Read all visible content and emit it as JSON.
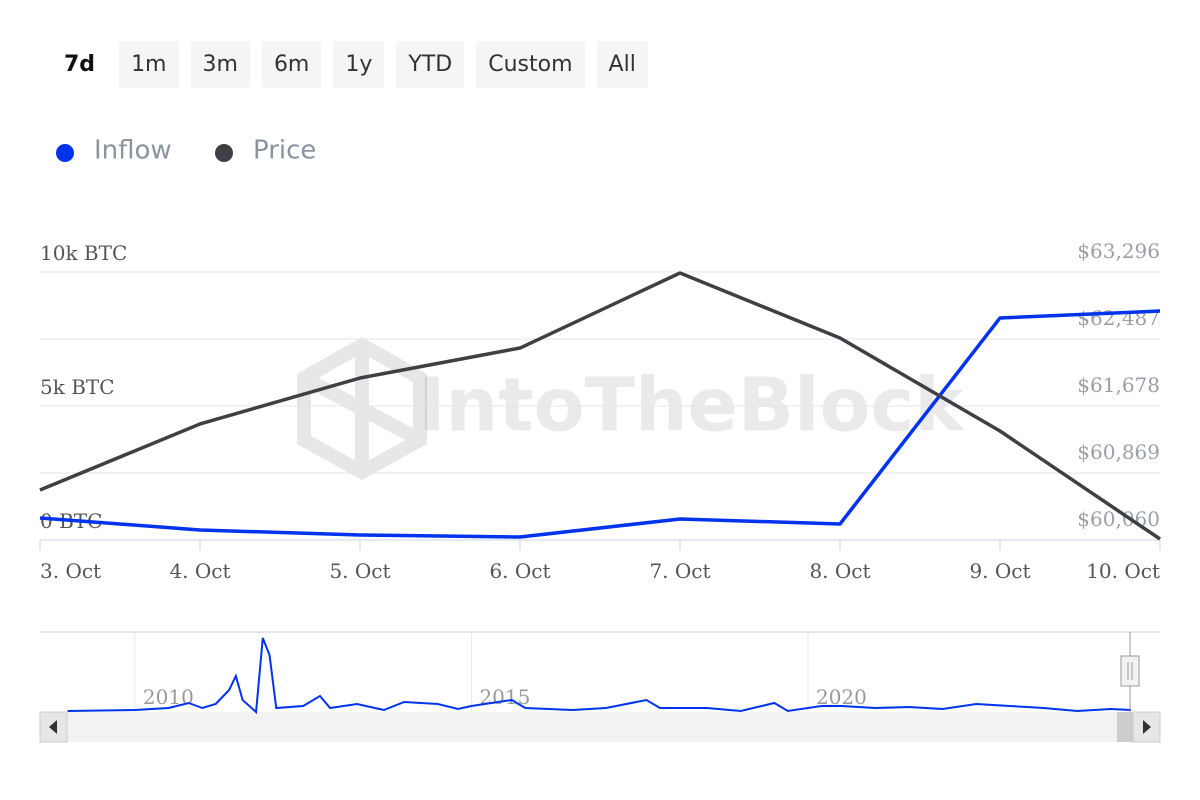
{
  "range_buttons": [
    "7d",
    "1m",
    "3m",
    "6m",
    "1y",
    "YTD",
    "Custom",
    "All"
  ],
  "selected_button": 0,
  "watermark": "IntoTheBlock",
  "chart_data": {
    "type": "line",
    "categories": [
      "3. Oct",
      "4. Oct",
      "5. Oct",
      "6. Oct",
      "7. Oct",
      "8. Oct",
      "9. Oct",
      "10. Oct"
    ],
    "series": [
      {
        "name": "Inflow",
        "color": "#0033ee",
        "values": [
          820,
          373,
          187,
          112,
          784,
          597,
          8284,
          8545
        ]
      },
      {
        "name": "Price",
        "color": "#3d4044",
        "axis": "y2",
        "values": [
          60664,
          61461,
          62016,
          62378,
          63284,
          62499,
          61376,
          60072
        ]
      }
    ],
    "ylim": [
      0,
      10000
    ],
    "yticks": [
      {
        "value": 0,
        "label": "0 BTC"
      },
      {
        "value": 5000,
        "label": "5k BTC"
      },
      {
        "value": 10000,
        "label": "10k BTC"
      }
    ],
    "y2lim": [
      60060,
      63296
    ],
    "y2ticks": [
      {
        "value": 60060,
        "label": "$60,060"
      },
      {
        "value": 60869,
        "label": "$60,869"
      },
      {
        "value": 61678,
        "label": "$61,678"
      },
      {
        "value": 62487,
        "label": "$62,487"
      },
      {
        "value": 63296,
        "label": "$63,296"
      }
    ],
    "grid": true,
    "legend": "top-left",
    "navigator": {
      "color": "#0033ee",
      "xlim": [
        2008.59,
        2025.23
      ],
      "ylim": [
        0,
        100000
      ],
      "xticks": [
        2010,
        2015,
        2020
      ],
      "x": [
        2009.0,
        2010.0,
        2010.5,
        2010.8,
        2011.0,
        2011.2,
        2011.4,
        2011.5,
        2011.6,
        2011.8,
        2011.9,
        2012.0,
        2012.1,
        2012.5,
        2012.75,
        2012.9,
        2013.3,
        2013.7,
        2014.0,
        2014.5,
        2014.8,
        2015.0,
        2015.6,
        2015.8,
        2016.5,
        2017.0,
        2017.6,
        2017.8,
        2018.5,
        2019.0,
        2019.5,
        2019.7,
        2020.2,
        2020.5,
        2021.0,
        2021.5,
        2022.0,
        2022.5,
        2023.0,
        2023.5,
        2024.0,
        2024.5,
        2024.8
      ],
      "values": [
        1250,
        2500,
        5000,
        11250,
        5000,
        10000,
        27500,
        45000,
        15000,
        0,
        92500,
        71250,
        5000,
        7500,
        20000,
        5000,
        10000,
        2500,
        12500,
        10000,
        3750,
        7500,
        15000,
        5000,
        2500,
        5000,
        15000,
        5000,
        5000,
        1250,
        11250,
        1250,
        7500,
        7500,
        5000,
        6250,
        3750,
        10000,
        7500,
        5000,
        1250,
        3750,
        2500
      ]
    }
  }
}
